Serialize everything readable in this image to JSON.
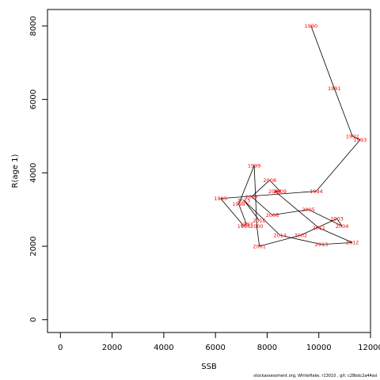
{
  "chart_data": {
    "type": "line",
    "xlabel": "SSB",
    "ylabel": "R(age 1)",
    "xlim": [
      -500,
      12000
    ],
    "ylim": [
      -350,
      8450
    ],
    "x_ticks": [
      0,
      2000,
      4000,
      6000,
      8000,
      10000,
      12000
    ],
    "y_ticks": [
      0,
      2000,
      4000,
      6000,
      8000
    ],
    "series": [
      {
        "points": [
          {
            "year": "1990",
            "x": 9700,
            "y": 8000
          },
          {
            "year": "1991",
            "x": 10600,
            "y": 6300
          },
          {
            "year": "1992",
            "x": 11300,
            "y": 5000
          },
          {
            "year": "1993",
            "x": 11600,
            "y": 4900
          },
          {
            "year": "1994",
            "x": 9900,
            "y": 3500
          },
          {
            "year": "1995",
            "x": 6200,
            "y": 3300
          },
          {
            "year": "1996",
            "x": 7100,
            "y": 2550
          },
          {
            "year": "1997",
            "x": 7200,
            "y": 2600
          },
          {
            "year": "1998",
            "x": 6900,
            "y": 3150
          },
          {
            "year": "1999",
            "x": 7500,
            "y": 4200
          },
          {
            "year": "2000",
            "x": 7600,
            "y": 2550
          },
          {
            "year": "2001",
            "x": 7700,
            "y": 2000
          },
          {
            "year": "2002",
            "x": 9300,
            "y": 2300
          },
          {
            "year": "2003",
            "x": 10700,
            "y": 2750
          },
          {
            "year": "2004",
            "x": 10900,
            "y": 2550
          },
          {
            "year": "2005",
            "x": 9600,
            "y": 3000
          },
          {
            "year": "2006",
            "x": 8200,
            "y": 2850
          },
          {
            "year": "2007",
            "x": 7400,
            "y": 3350
          },
          {
            "year": "2008",
            "x": 8100,
            "y": 3800
          },
          {
            "year": "2009",
            "x": 8500,
            "y": 3500
          },
          {
            "year": "2010",
            "x": 8300,
            "y": 3500
          },
          {
            "year": "2011",
            "x": 10000,
            "y": 2500
          },
          {
            "year": "2012",
            "x": 11300,
            "y": 2100
          },
          {
            "year": "2013",
            "x": 10100,
            "y": 2050
          },
          {
            "year": "2014",
            "x": 8500,
            "y": 2300
          },
          {
            "year": "2015",
            "x": 7100,
            "y": 3250
          },
          {
            "year": "2016",
            "x": 7700,
            "y": 2700
          }
        ]
      }
    ]
  },
  "footer": "stockassessment.org,  WhiteHake,  r13010 ,  git: c28bdc2a44ad"
}
